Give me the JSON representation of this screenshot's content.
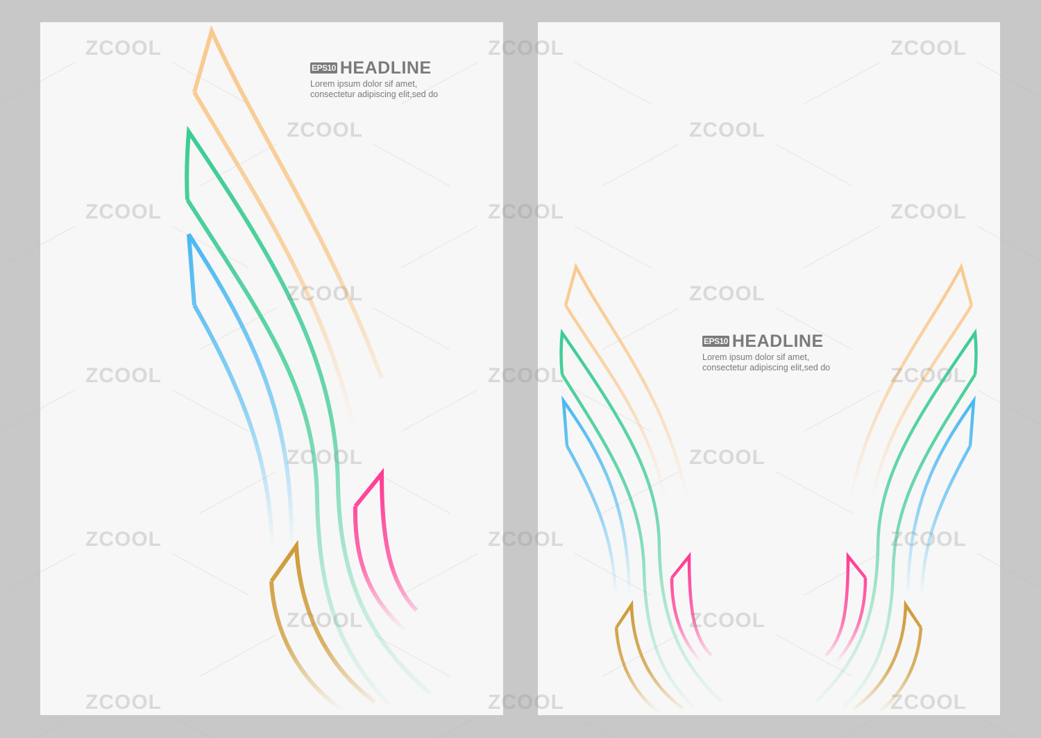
{
  "watermark": "ZCOOL",
  "left_poster": {
    "badge": "EPS10",
    "headline": "HEADLINE",
    "body_line1": "Lorem ipsum dolor sif amet,",
    "body_line2": "consectetur adipiscing elit,sed do"
  },
  "right_poster": {
    "badge": "EPS10",
    "headline": "HEADLINE",
    "body_line1": "Lorem ipsum dolor sif amet,",
    "body_line2": "consectetur adipiscing elit,sed do"
  },
  "colors": {
    "background": "#c8c8c8",
    "page": "#f7f7f7",
    "orange": "#f9c98e",
    "green": "#3ccc94",
    "blue": "#4ab8f2",
    "pink": "#ff3a94",
    "gold": "#cf9a37",
    "text": "#7a7a7a"
  }
}
